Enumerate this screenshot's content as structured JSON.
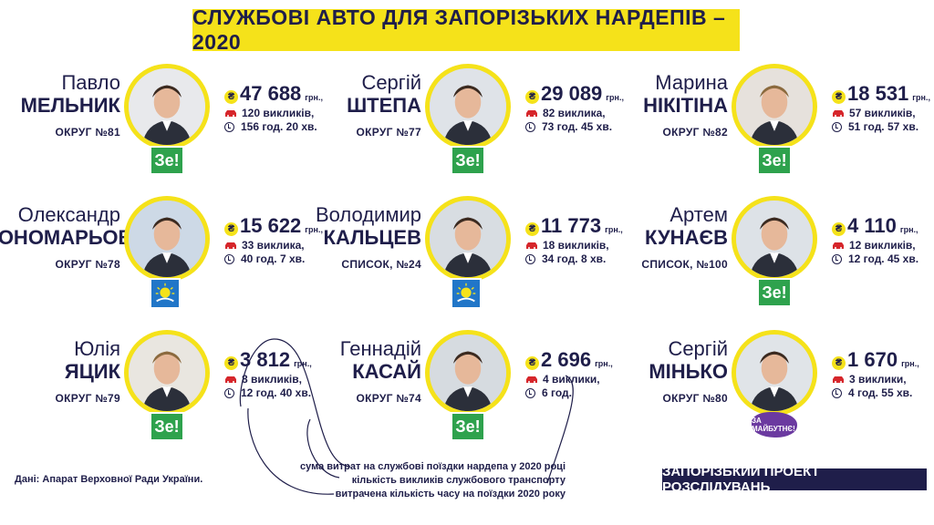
{
  "title": "СЛУЖБОВІ АВТО ДЛЯ ЗАПОРІЗЬКИХ НАРДЕПІВ – 2020",
  "unit": "грн.,",
  "colors": {
    "accent": "#f5e21a",
    "dark": "#1f1e4a",
    "ze_green": "#2ea24d",
    "sun_blue": "#2176c8",
    "future_purple": "#6b3aa0"
  },
  "deputies": [
    {
      "first": "Павло",
      "last": "МЕЛЬНИК",
      "district": "ОКРУГ №81",
      "cost": "47 688",
      "trips": "120 викликів,",
      "time": "156 год. 20 хв.",
      "badge": "Зе!",
      "badge_type": "ze"
    },
    {
      "first": "Сергій",
      "last": "ШТЕПА",
      "district": "ОКРУГ №77",
      "cost": "29 089",
      "trips": "82 виклика,",
      "time": "73 год. 45 хв.",
      "badge": "Зе!",
      "badge_type": "ze"
    },
    {
      "first": "Марина",
      "last": "НІКІТІНА",
      "district": "ОКРУГ №82",
      "cost": "18 531",
      "trips": "57 викликів,",
      "time": "51 год. 57 хв.",
      "badge": "Зе!",
      "badge_type": "ze"
    },
    {
      "first": "Олександр",
      "last": "ПОНОМАРЬОВ",
      "district": "ОКРУГ №78",
      "cost": "15 622",
      "trips": "33 виклика,",
      "time": "40 год. 7 хв.",
      "badge": "",
      "badge_type": "sun"
    },
    {
      "first": "Володимир",
      "last": "КАЛЬЦЕВ",
      "district": "СПИСОК, №24",
      "cost": "11 773",
      "trips": "18 викликів,",
      "time": "34 год. 8 хв.",
      "badge": "",
      "badge_type": "sun"
    },
    {
      "first": "Артем",
      "last": "КУНАЄВ",
      "district": "СПИСОК, №100",
      "cost": "4 110",
      "trips": "12 викликів,",
      "time": "12 год. 45 хв.",
      "badge": "Зе!",
      "badge_type": "ze"
    },
    {
      "first": "Юлія",
      "last": "ЯЦИК",
      "district": "ОКРУГ №79",
      "cost": "3 812",
      "trips": "8 викликів,",
      "time": "12 год. 40 хв.",
      "badge": "Зе!",
      "badge_type": "ze"
    },
    {
      "first": "Геннадій",
      "last": "КАСАЙ",
      "district": "ОКРУГ №74",
      "cost": "2 696",
      "trips": "4 виклики,",
      "time": "6 год.",
      "badge": "Зе!",
      "badge_type": "ze"
    },
    {
      "first": "Сергій",
      "last": "МІНЬКО",
      "district": "ОКРУГ №80",
      "cost": "1 670",
      "trips": "3 виклики,",
      "time": "4 год. 55 хв.",
      "badge": "ЗА МАЙБУТНЄ!",
      "badge_type": "future"
    }
  ],
  "legend": {
    "cost": "сума витрат на службові поїздки нардепа у 2020 році",
    "trips": "кількість викликів службового транспорту",
    "time": "витрачена кількість часу на поїздки 2020 року"
  },
  "source": "Дані: Апарат Верховної Ради України.",
  "project": "ЗАПОРІЗЬКИЙ ПРОЕКТ РОЗСЛІДУВАНЬ"
}
